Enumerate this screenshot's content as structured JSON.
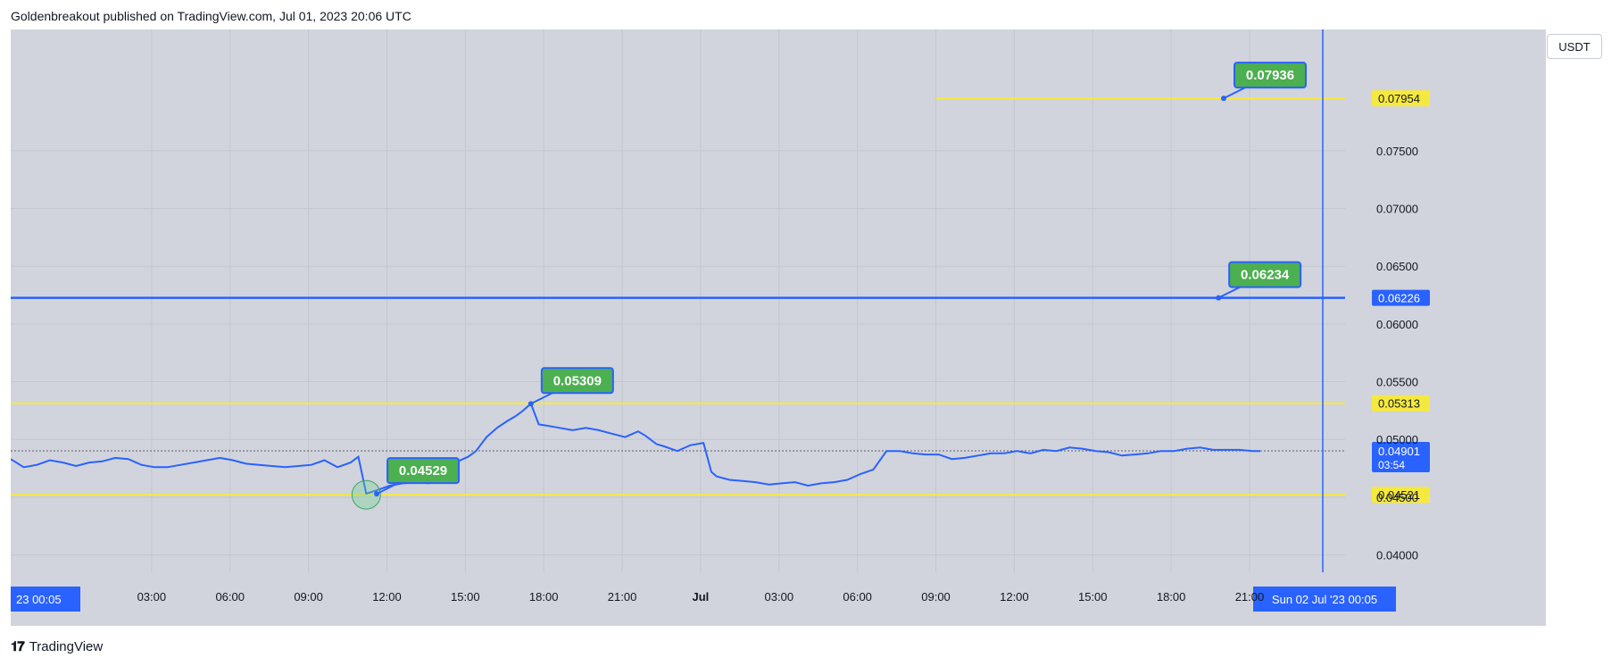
{
  "header": {
    "text": "Goldenbreakout published on TradingView.com, Jul 01, 2023 20:06 UTC"
  },
  "currency": "USDT",
  "footer": {
    "brand": "TradingView"
  },
  "colors": {
    "line": "#2962ff",
    "yellow": "#f5e93f",
    "green": "#4caf50",
    "blue": "#2962ff",
    "plot_bg": "#d1d4dc"
  },
  "chart_data": {
    "type": "line",
    "title": "",
    "xlabel": "",
    "ylabel": "",
    "ylim": [
      0.0385,
      0.0855
    ],
    "y_ticks": [
      "0.04000",
      "0.04500",
      "0.05000",
      "0.05500",
      "0.06000",
      "0.06500",
      "0.07000",
      "0.07500"
    ],
    "x_ticks": [
      "03:00",
      "06:00",
      "09:00",
      "12:00",
      "15:00",
      "18:00",
      "21:00",
      "Jul",
      "03:00",
      "06:00",
      "09:00",
      "12:00",
      "15:00",
      "18:00",
      "21:00"
    ],
    "x_tick_hours": [
      3,
      6,
      9,
      12,
      15,
      18,
      21,
      24,
      27,
      30,
      33,
      36,
      39,
      42,
      45
    ],
    "x_range_hours": [
      0,
      47.8
    ],
    "series": [
      {
        "x_hours": [
          0,
          0.5,
          1,
          1.5,
          2,
          2.5,
          3,
          3.5,
          4,
          4.5,
          5,
          5.5,
          6,
          6.5,
          7,
          7.5,
          8,
          8.5,
          9,
          9.5,
          10,
          10.5,
          11,
          11.5,
          12,
          12.5,
          13,
          13.3,
          13.6,
          14,
          14.5,
          15,
          15.5,
          16,
          16.5,
          17,
          17.5,
          17.8,
          18.2,
          18.6,
          19,
          19.3,
          19.6,
          19.9,
          20.2,
          20.5,
          21,
          21.5,
          22,
          22.5,
          23,
          23.5,
          24,
          24.3,
          24.7,
          25,
          25.5,
          26,
          26.5,
          26.8,
          27,
          27.5,
          28,
          28.5,
          29,
          29.5,
          30,
          30.5,
          31,
          31.5,
          32,
          32.5,
          33,
          33.5,
          34,
          34.5,
          35,
          35.5,
          36,
          36.5,
          37,
          37.5,
          38,
          38.5,
          39,
          39.5,
          40,
          40.5,
          41,
          41.5,
          42,
          42.5,
          43,
          43.5,
          44,
          44.5,
          45,
          45.5,
          46,
          46.5,
          47,
          47.5,
          47.8
        ],
        "values": [
          0.0483,
          0.0476,
          0.0478,
          0.0482,
          0.048,
          0.0477,
          0.048,
          0.0481,
          0.0484,
          0.0483,
          0.0478,
          0.0476,
          0.0476,
          0.0478,
          0.048,
          0.0482,
          0.0484,
          0.0482,
          0.0479,
          0.0478,
          0.0477,
          0.0476,
          0.0477,
          0.0478,
          0.0482,
          0.0476,
          0.048,
          0.0485,
          0.0453,
          0.0456,
          0.046,
          0.0462,
          0.0463,
          0.0462,
          0.047,
          0.048,
          0.0485,
          0.049,
          0.0502,
          0.051,
          0.0516,
          0.052,
          0.0525,
          0.0531,
          0.0513,
          0.0512,
          0.051,
          0.0508,
          0.051,
          0.0508,
          0.0505,
          0.0502,
          0.0507,
          0.0503,
          0.0496,
          0.0494,
          0.049,
          0.0495,
          0.0497,
          0.0472,
          0.0468,
          0.0465,
          0.0464,
          0.0463,
          0.0461,
          0.0462,
          0.0463,
          0.046,
          0.0462,
          0.0463,
          0.0465,
          0.047,
          0.0474,
          0.049,
          0.049,
          0.0488,
          0.0487,
          0.0487,
          0.0483,
          0.0484,
          0.0486,
          0.0488,
          0.0488,
          0.049,
          0.0488,
          0.0491,
          0.049,
          0.0493,
          0.0492,
          0.049,
          0.0489,
          0.0486,
          0.0487,
          0.0488,
          0.049,
          0.049,
          0.0492,
          0.0493,
          0.0491,
          0.0491,
          0.0491,
          0.049,
          0.049
        ]
      }
    ],
    "hlines": [
      {
        "value": 0.07954,
        "label": "0.07954",
        "color": "#f5e93f",
        "from_hour": 33
      },
      {
        "value": 0.06226,
        "label": "0.06226",
        "color": "#2962ff",
        "from_hour": 0
      },
      {
        "value": 0.05313,
        "label": "0.05313",
        "color": "#f5e93f",
        "from_hour": 0
      },
      {
        "value": 0.04521,
        "label": "0.04521",
        "color": "#f5e93f",
        "from_hour": 0
      }
    ],
    "last_price": {
      "value": 0.04901,
      "label": "0.04901",
      "countdown": "03:54"
    },
    "callouts": [
      {
        "label": "0.07936",
        "x_hour": 46.4,
        "y": 0.07954
      },
      {
        "label": "0.06234",
        "x_hour": 46.2,
        "y": 0.06226
      },
      {
        "label": "0.05309",
        "x_hour": 19.9,
        "y": 0.05309
      },
      {
        "label": "0.04529",
        "x_hour": 14.0,
        "y": 0.04529
      }
    ],
    "circle_marker": {
      "x_hour": 13.6,
      "y": 0.04521
    },
    "crosshair": {
      "x_hour": 47.8,
      "date_label": "Sun 02 Jul '23   00:05",
      "left_label": "23   00:05"
    },
    "grid": true
  }
}
